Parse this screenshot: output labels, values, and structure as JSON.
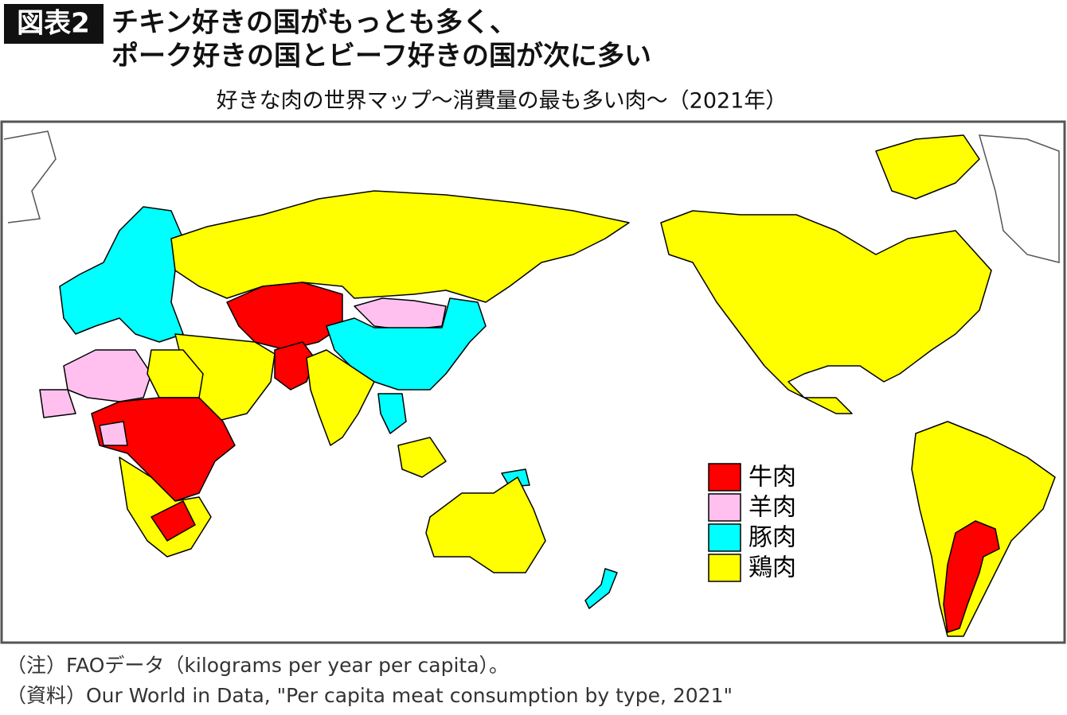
{
  "header": {
    "badge": "図表2",
    "title_lines": [
      "チキン好きの国がもっとも多く、",
      "ポーク好きの国とビーフ好きの国が次に多い"
    ],
    "subtitle": "好きな肉の世界マップ〜消費量の最も多い肉〜（2021年）"
  },
  "legend": [
    {
      "name": "牛肉",
      "color": "#ff0000"
    },
    {
      "name": "羊肉",
      "color": "#ffc0f0"
    },
    {
      "name": "豚肉",
      "color": "#00ffff"
    },
    {
      "name": "鶏肉",
      "color": "#ffff00"
    }
  ],
  "notes": [
    "（注）FAOデータ（kilograms per year per capita）。",
    "（資料）Our World in Data, \"Per capita meat consumption by type, 2021\""
  ]
}
